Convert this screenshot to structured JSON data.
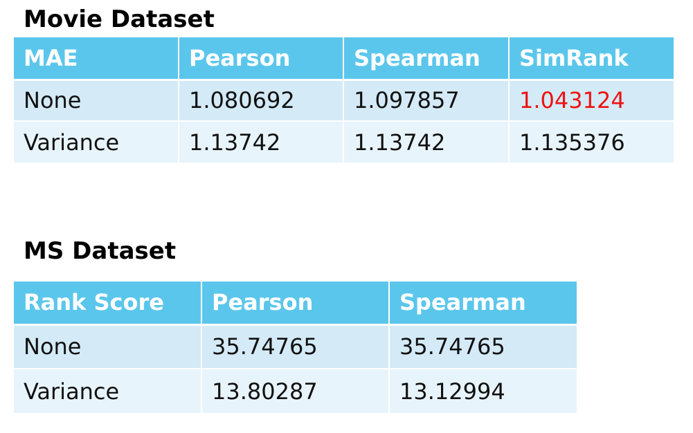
{
  "movie_dataset": {
    "title": "Movie Dataset",
    "headers": [
      "MAE",
      "Pearson",
      "Spearman",
      "SimRank"
    ],
    "rows": [
      [
        "None",
        "1.080692",
        "1.097857",
        "1.043124"
      ],
      [
        "Variance",
        "1.13742",
        "1.13742",
        "1.135376"
      ]
    ],
    "highlight_color": "#ee1111"
  },
  "ms_dataset": {
    "title": "MS Dataset",
    "headers": [
      "Rank Score",
      "Pearson",
      "Spearman"
    ],
    "rows": [
      [
        "None",
        "35.74765",
        "35.74765"
      ],
      [
        "Variance",
        "13.80287",
        "13.12994"
      ]
    ]
  },
  "colors": {
    "header_bg": "#5bc6ec",
    "header_text": "#ffffff",
    "row_odd_bg": "#d4eaf7",
    "row_even_bg": "#e8f4fb",
    "text": "#111111"
  }
}
